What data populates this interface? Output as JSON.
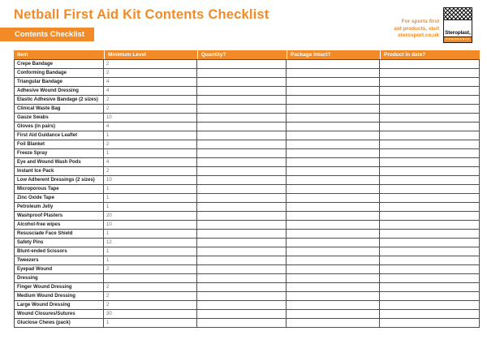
{
  "header": {
    "title": "Netball First Aid Kit Contents Checklist",
    "banner_label": "Contents Checklist",
    "promo_lines": [
      "For sports first",
      "aid products, visit",
      "sterosport.co.uk"
    ],
    "accent_color": "#f28b27"
  },
  "logo": {
    "brand": "Steroplast",
    "registered_mark": "®",
    "tagline": "healthcare"
  },
  "table": {
    "columns": [
      "Item",
      "Minimum Level",
      "Quantity?",
      "Package intact?",
      "Product in date?"
    ],
    "column_keys": [
      "item",
      "minimum_level",
      "quantity",
      "package_intact",
      "product_in_date"
    ],
    "rows": [
      [
        "Crepe Bandage",
        "2",
        "",
        "",
        ""
      ],
      [
        "Conforming Bandage",
        "2",
        "",
        "",
        ""
      ],
      [
        "Triangular Bandage",
        "4",
        "",
        "",
        ""
      ],
      [
        "Adhesive Wound Dressing",
        "4",
        "",
        "",
        ""
      ],
      [
        "Elastic Adhesive Bandage (2 sizes)",
        "2",
        "",
        "",
        ""
      ],
      [
        "Clinical Waste Bag",
        "2",
        "",
        "",
        ""
      ],
      [
        "Gauze Swabs",
        "10",
        "",
        "",
        ""
      ],
      [
        "Gloves (in pairs)",
        "4",
        "",
        "",
        ""
      ],
      [
        "First Aid Guidance Leaflet",
        "1",
        "",
        "",
        ""
      ],
      [
        "Foil Blanket",
        "2",
        "",
        "",
        ""
      ],
      [
        "Freeze Spray",
        "1",
        "",
        "",
        ""
      ],
      [
        "Eye and Wound Wash Pods",
        "4",
        "",
        "",
        ""
      ],
      [
        "Instant Ice Pack",
        "2",
        "",
        "",
        ""
      ],
      [
        "Low Adherent Dressings (2 sizes)",
        "10",
        "",
        "",
        ""
      ],
      [
        "Microporous Tape",
        "1",
        "",
        "",
        ""
      ],
      [
        "Zinc Oxide Tape",
        "1",
        "",
        "",
        ""
      ],
      [
        "Petroleum Jelly",
        "1",
        "",
        "",
        ""
      ],
      [
        "Washproof Plasters",
        "20",
        "",
        "",
        ""
      ],
      [
        "Alcohol-free wipes",
        "10",
        "",
        "",
        ""
      ],
      [
        "Resusciade Face Shield",
        "1",
        "",
        "",
        ""
      ],
      [
        "Safety Pins",
        "12",
        "",
        "",
        ""
      ],
      [
        "Blunt-ended Scissors",
        "1",
        "",
        "",
        ""
      ],
      [
        "Tweezers",
        "1",
        "",
        "",
        ""
      ],
      [
        "Eyepad Wound",
        "2",
        "",
        "",
        ""
      ],
      [
        "Dressing",
        "",
        "",
        "",
        ""
      ],
      [
        "Finger Wound Dressing",
        "2",
        "",
        "",
        ""
      ],
      [
        "Medium Wound Dressing",
        "2",
        "",
        "",
        ""
      ],
      [
        "Large Wound Dressing",
        "2",
        "",
        "",
        ""
      ],
      [
        "Wound Closures/Sutures",
        "30",
        "",
        "",
        ""
      ],
      [
        "Gluclose Chews (pack)",
        "1",
        "",
        "",
        ""
      ]
    ]
  }
}
